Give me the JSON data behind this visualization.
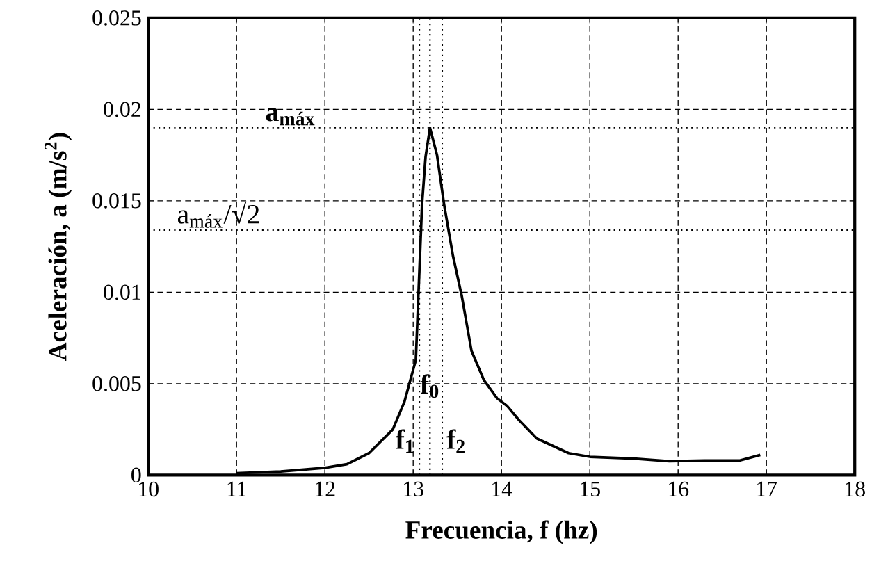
{
  "chart_data": {
    "type": "line",
    "xlabel": "Frecuencia, f (hz)",
    "ylabel": "Aceleración, a (m/s$^{2}$)",
    "x": [
      11.0,
      11.5,
      12.0,
      12.25,
      12.5,
      12.77,
      12.9,
      13.03,
      13.1,
      13.14,
      13.19,
      13.27,
      13.35,
      13.45,
      13.55,
      13.66,
      13.8,
      13.95,
      14.06,
      14.2,
      14.4,
      14.76,
      15.0,
      15.5,
      15.9,
      16.3,
      16.7,
      16.93
    ],
    "series": [
      {
        "color": "#000000",
        "values": [
          0.0001,
          0.0002,
          0.0004,
          0.0006,
          0.0012,
          0.0025,
          0.004,
          0.0063,
          0.0148,
          0.0174,
          0.019,
          0.0175,
          0.0148,
          0.012,
          0.0098,
          0.0068,
          0.0052,
          0.0042,
          0.0038,
          0.003,
          0.002,
          0.0012,
          0.001,
          0.0009,
          0.00076,
          0.0008,
          0.0008,
          0.0011
        ]
      }
    ],
    "xlim": [
      10,
      18
    ],
    "xticks": [
      10,
      11,
      12,
      13,
      14,
      15,
      16,
      17,
      18
    ],
    "ylim": [
      0,
      0.025
    ],
    "yticks": [
      0,
      0.005,
      0.01,
      0.015,
      0.02,
      0.025
    ],
    "grid": true,
    "line_style": "solid",
    "marker": "none",
    "ref_lines": [
      {
        "axis": "y",
        "value": 0.019,
        "label": "**a$_{máx}$**",
        "line_style": "dotted"
      },
      {
        "axis": "y",
        "value": 0.0134,
        "label": "a$_{máx}$/√2",
        "line_style": "dotted"
      },
      {
        "axis": "x",
        "value": 13.07,
        "label": "**f$_{1}$**",
        "line_style": "dotted"
      },
      {
        "axis": "x",
        "value": 13.19,
        "label": "**f$_{0}$**",
        "line_style": "dotted"
      },
      {
        "axis": "x",
        "value": 13.33,
        "label": "**f$_{2}$**",
        "line_style": "dotted"
      }
    ]
  }
}
